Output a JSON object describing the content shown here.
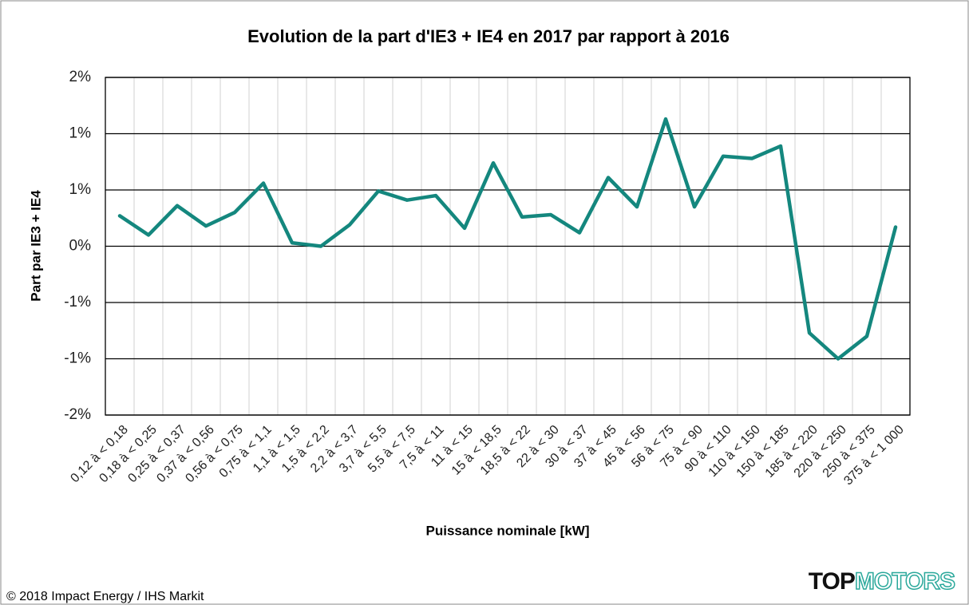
{
  "chart_data": {
    "type": "line",
    "title": "Evolution de la part d'IE3 + IE4 en 2017 par rapport à 2016",
    "x_label": "Puissance nominale [kW]",
    "y_label": "Part par IE3 + IE4",
    "source": "© 2018 Impact Energy / IHS Markit",
    "logo": [
      "TOP",
      "MOTORS"
    ],
    "categories": [
      "0,12 à < 0,18",
      "0,18 à < 0,25",
      "0,25 à < 0,37",
      "0,37 à < 0,56",
      "0,56 à < 0,75",
      "0,75 à < 1,1",
      "1,1 à < 1,5",
      "1,5 à < 2,2",
      "2,2 à < 3,7",
      "3,7 à < 5,5",
      "5,5 à < 7,5",
      "7,5 à < 11",
      "11 à < 15",
      "15 à < 18,5",
      "18,5 à < 22",
      "22 à < 30",
      "30 à < 37",
      "37 à < 45",
      "45 à < 56",
      "56 à < 75",
      "75 à < 90",
      "90 à < 110",
      "110 à < 150",
      "150 à < 185",
      "185 à < 220",
      "220 à < 250",
      "250 à < 375",
      "375 à < 1 000"
    ],
    "series": [
      {
        "name": "Part par IE3 + IE4",
        "color": "#14877e",
        "values": [
          0.27,
          0.1,
          0.36,
          0.18,
          0.3,
          0.56,
          0.03,
          0.0,
          0.19,
          0.49,
          0.41,
          0.45,
          0.16,
          0.74,
          0.26,
          0.28,
          0.12,
          0.61,
          0.35,
          1.13,
          0.35,
          0.8,
          0.78,
          0.89,
          -0.77,
          -1.0,
          -0.8,
          0.17
        ]
      }
    ],
    "ylim": [
      -1.5,
      1.5
    ],
    "yticks": [
      {
        "value": 1.5,
        "label": "2%"
      },
      {
        "value": 1,
        "label": "1%"
      },
      {
        "value": 0.5,
        "label": "1%"
      },
      {
        "value": 0,
        "label": "0%"
      },
      {
        "value": -0.5,
        "label": "-1%"
      },
      {
        "value": -1,
        "label": "-1%"
      },
      {
        "value": -1.5,
        "label": "-2%"
      }
    ],
    "grid": true
  }
}
